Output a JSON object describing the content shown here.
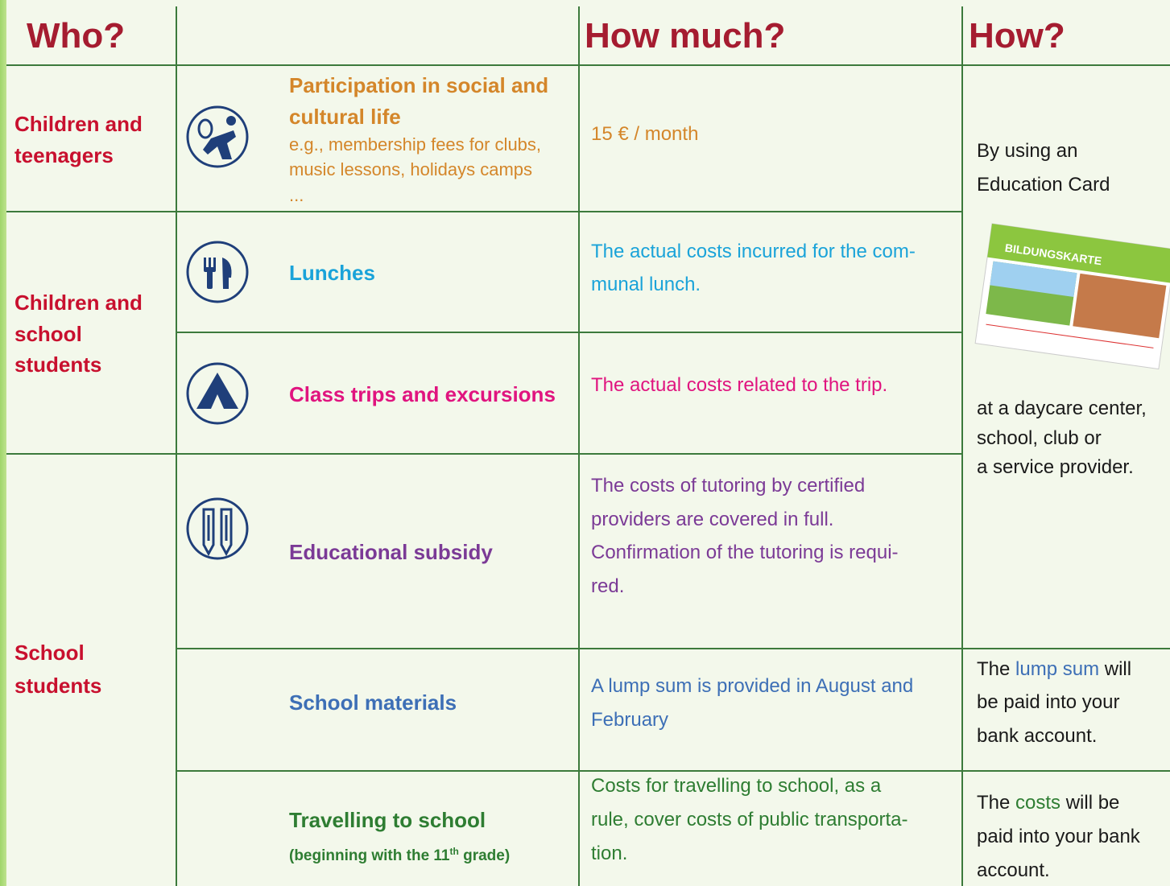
{
  "header": {
    "who": "Who?",
    "how_much": "How much?",
    "how": "How?"
  },
  "who": [
    {
      "lines": [
        "Children and",
        "teenagers"
      ]
    },
    {
      "lines": [
        "Children and",
        "school",
        "students"
      ]
    },
    {
      "lines": [
        "School",
        "students"
      ]
    }
  ],
  "benefits": [
    {
      "title": [
        "Participation in social and",
        "cultural life"
      ],
      "description": [
        "e.g., membership fees for clubs,",
        "music lessons, holidays camps",
        "..."
      ],
      "amount": [
        "15 € / month"
      ]
    },
    {
      "title": [
        "Lunches"
      ],
      "amount": [
        "The actual costs incurred for the com-",
        "munal lunch."
      ]
    },
    {
      "title": [
        "Class trips and excursions"
      ],
      "amount": [
        "The actual costs related to the trip."
      ]
    },
    {
      "title": [
        "Educational subsidy"
      ],
      "amount": [
        "The costs of tutoring by certified",
        "providers are covered in full.",
        "Confirmation of the tutoring is requi-",
        "red."
      ]
    },
    {
      "title": [
        "School materials"
      ],
      "amount": [
        "A lump sum is provided in August and",
        "February"
      ]
    },
    {
      "title": [
        "Travelling to school"
      ],
      "description": [
        "(beginning with the 11",
        "th",
        " grade)"
      ],
      "amount": [
        "Costs for travelling to school, as a",
        "rule, cover costs of public transporta-",
        "tion."
      ]
    }
  ],
  "how": [
    {
      "lines": [
        [
          "By using an"
        ],
        [
          "Education Card"
        ],
        [
          "at a daycare center,"
        ],
        [
          "school, club or"
        ],
        [
          "a service provider."
        ]
      ]
    },
    {
      "lines": [
        [
          "The ",
          "lump sum",
          " will"
        ],
        [
          "be paid into your"
        ],
        [
          "bank account."
        ]
      ]
    },
    {
      "lines": [
        [
          "The ",
          "costs",
          " will be"
        ],
        [
          "paid into your bank"
        ],
        [
          "account."
        ]
      ]
    }
  ],
  "card": {
    "title": "BILDUNGSKARTE"
  }
}
